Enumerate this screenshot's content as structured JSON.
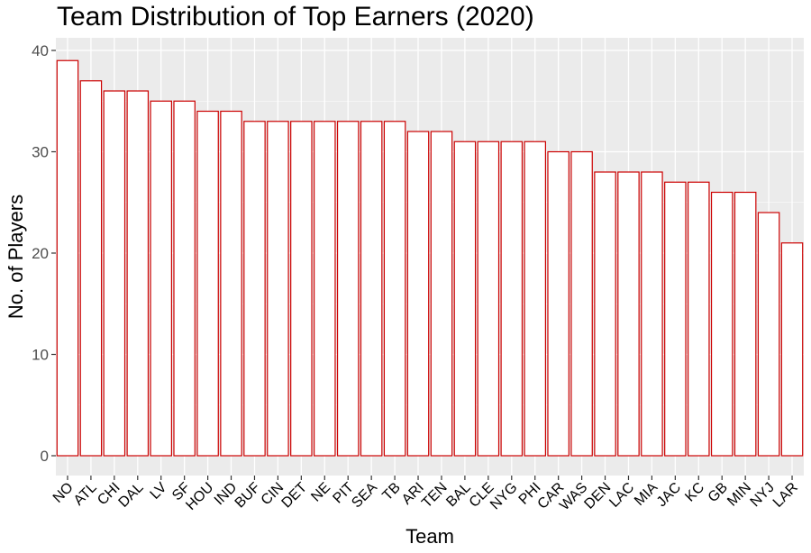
{
  "chart_data": {
    "type": "bar",
    "title": "Team Distribution of Top Earners (2020)",
    "xlabel": "Team",
    "ylabel": "No. of Players",
    "categories": [
      "NO",
      "ATL",
      "CHI",
      "DAL",
      "LV",
      "SF",
      "HOU",
      "IND",
      "BUF",
      "CIN",
      "DET",
      "NE",
      "PIT",
      "SEA",
      "TB",
      "ARI",
      "TEN",
      "BAL",
      "CLE",
      "NYG",
      "PHI",
      "CAR",
      "WAS",
      "DEN",
      "LAC",
      "MIA",
      "JAC",
      "KC",
      "GB",
      "MIN",
      "NYJ",
      "LAR"
    ],
    "values": [
      39,
      37,
      36,
      36,
      35,
      35,
      34,
      34,
      33,
      33,
      33,
      33,
      33,
      33,
      33,
      32,
      32,
      31,
      31,
      31,
      31,
      30,
      30,
      28,
      28,
      28,
      27,
      27,
      26,
      26,
      24,
      21
    ],
    "ylim": [
      0,
      41
    ],
    "yticks": [
      0,
      10,
      20,
      30,
      40
    ],
    "grid": true,
    "colors": {
      "panel": "#ebebeb",
      "grid": "#ffffff",
      "bar_fill": "#ffffff",
      "bar_stroke": "#cc0000",
      "text": "#000000"
    }
  }
}
